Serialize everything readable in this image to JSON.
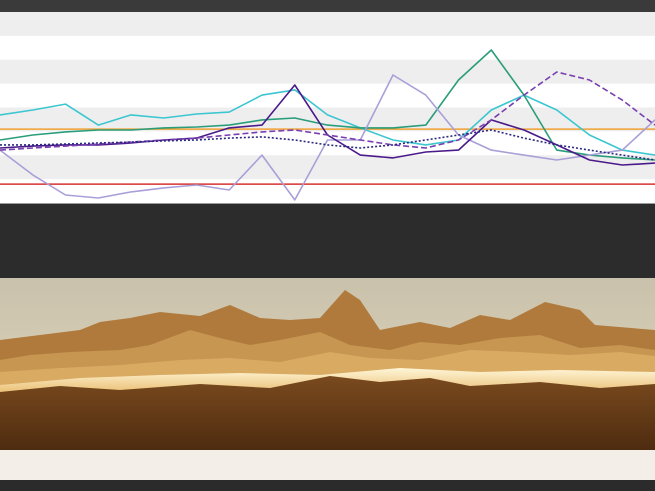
{
  "chart_data": {
    "type": "line",
    "x": [
      0,
      5,
      10,
      15,
      20,
      25,
      30,
      35,
      40,
      45,
      50,
      55,
      60,
      65,
      70,
      75,
      80,
      85,
      90,
      95,
      100
    ],
    "xlim": [
      0,
      100
    ],
    "ylim": [
      0,
      100
    ],
    "grid": "bands",
    "series": [
      {
        "color": "#3cc6d0",
        "style": "solid",
        "values": [
          46.1,
          48.7,
          51.8,
          40.8,
          46.1,
          44.5,
          46.6,
          47.6,
          56.5,
          59.2,
          46.1,
          39.3,
          33.0,
          30.4,
          33.0,
          48.7,
          56.5,
          48.7,
          35.6,
          27.7,
          25.1
        ]
      },
      {
        "color": "#2a9d7a",
        "style": "solid",
        "values": [
          33.0,
          35.6,
          37.2,
          38.2,
          38.2,
          39.3,
          39.8,
          40.8,
          43.5,
          44.5,
          40.8,
          39.3,
          39.3,
          40.8,
          64.4,
          80.1,
          56.5,
          27.7,
          25.1,
          23.6,
          22.5
        ]
      },
      {
        "color": "#a9a0d8",
        "style": "solid",
        "values": [
          27.7,
          14.7,
          4.2,
          2.6,
          5.8,
          7.9,
          9.4,
          6.8,
          25.1,
          1.6,
          33.0,
          33.0,
          67.0,
          56.5,
          35.6,
          27.7,
          25.1,
          22.5,
          25.1,
          27.7,
          43.5
        ]
      },
      {
        "color": "#4b1a8a",
        "style": "solid",
        "values": [
          28.8,
          29.8,
          30.4,
          30.4,
          31.4,
          33.0,
          34.0,
          39.3,
          40.8,
          61.8,
          35.6,
          25.1,
          23.6,
          26.7,
          27.7,
          43.5,
          38.2,
          30.4,
          22.5,
          19.9,
          20.9
        ]
      },
      {
        "color": "#7a3fb0",
        "style": "dashed",
        "values": [
          27.7,
          28.8,
          29.8,
          30.9,
          31.9,
          33.0,
          34.0,
          35.6,
          37.2,
          38.2,
          35.6,
          33.0,
          30.4,
          28.8,
          33.0,
          43.5,
          56.5,
          68.6,
          64.4,
          53.9,
          40.8
        ]
      },
      {
        "color": "#2a2a80",
        "style": "dotted",
        "values": [
          30.4,
          30.4,
          30.9,
          31.4,
          31.9,
          32.5,
          33.0,
          34.0,
          34.6,
          33.0,
          30.4,
          28.8,
          30.4,
          33.0,
          35.6,
          38.2,
          34.0,
          30.4,
          27.7,
          25.1,
          22.5
        ]
      }
    ],
    "reference_lines": [
      {
        "value": 38.7,
        "color": "#f0a030"
      },
      {
        "value": 9.9,
        "color": "#d83030"
      }
    ]
  }
}
